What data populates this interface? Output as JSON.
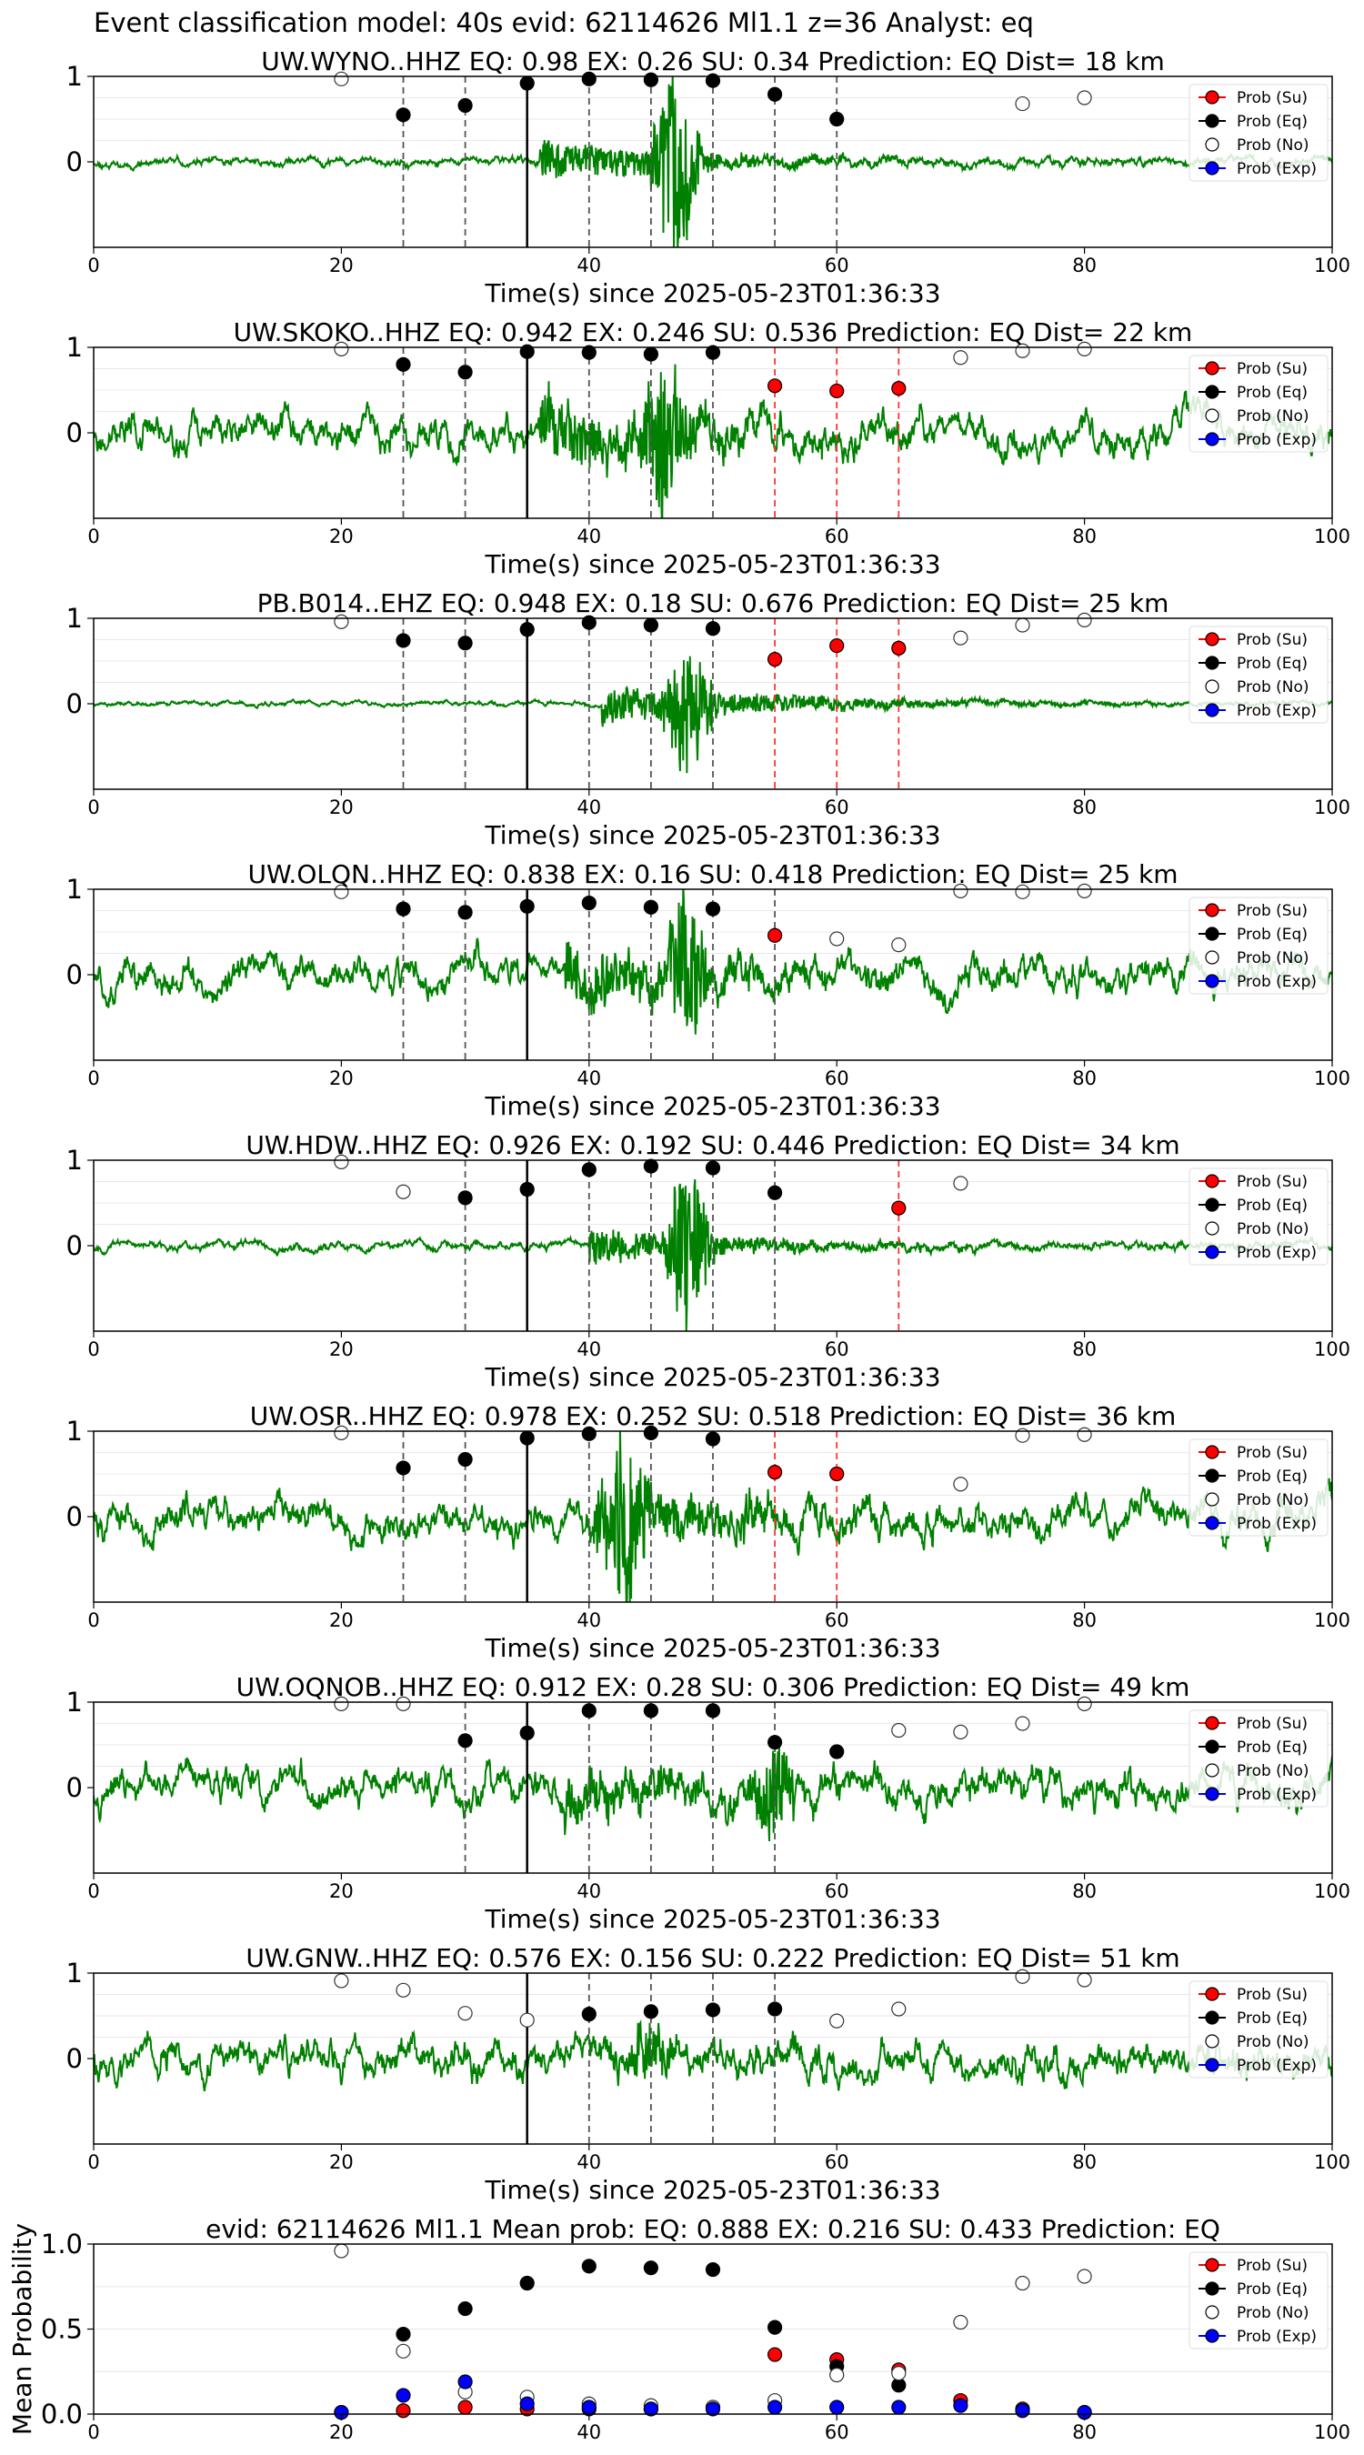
{
  "figure_title": "Event classification model: 40s evid: 62114626 Ml1.1 z=36 Analyst: eq",
  "colors": {
    "waveform": "#008000",
    "prob_su": "#ff0000",
    "prob_eq": "#000000",
    "prob_no": "#ffffff",
    "prob_exp": "#0000ff",
    "line_eq": "#555555",
    "line_su": "#ff3333"
  },
  "legend": [
    "Prob (Su)",
    "Prob (Eq)",
    "Prob (No)",
    "Prob (Exp)"
  ],
  "xlabel": "Time(s) since 2025-05-23T01:36:33",
  "chart_data": [
    {
      "type": "scatter",
      "title": "UW.WYNO..HHZ   EQ: 0.98  EX: 0.26  SU: 0.34   Prediction: EQ    Dist= 18 km",
      "xlabel": "Time(s) since 2025-05-23T01:36:33",
      "xlim": [
        0,
        100
      ],
      "ylim": [
        -1,
        1
      ],
      "xticks": [
        "0",
        "20",
        "40",
        "60",
        "80",
        "100"
      ],
      "yticks": [
        "0",
        "1"
      ],
      "legend": [
        "Prob (Su)",
        "Prob (Eq)",
        "Prob (No)",
        "Prob (Exp)"
      ],
      "legend_position": "top-right",
      "waveform": {
        "noise": 0.07,
        "quake_start": 36,
        "quake_amp": 0.22,
        "burst_center": 47,
        "burst_amp": 1.2,
        "seed": 11
      },
      "eq_lines": [
        25,
        30,
        40,
        45,
        50,
        55,
        60
      ],
      "su_lines": [],
      "origin_line": 35,
      "series": [
        {
          "name": "Prob (Eq)",
          "x": [
            25,
            30,
            35,
            40,
            45,
            50,
            55,
            60
          ],
          "y": [
            0.55,
            0.66,
            0.92,
            0.97,
            0.96,
            0.95,
            0.79,
            0.5
          ]
        },
        {
          "name": "Prob (No)",
          "x": [
            20,
            75,
            80
          ],
          "y": [
            0.97,
            0.68,
            0.75
          ]
        }
      ]
    },
    {
      "type": "scatter",
      "title": "UW.SKOKO..HHZ   EQ: 0.942  EX: 0.246  SU: 0.536   Prediction: EQ    Dist= 22 km",
      "xlabel": "Time(s) since 2025-05-23T01:36:33",
      "xlim": [
        0,
        100
      ],
      "ylim": [
        -1,
        1
      ],
      "xticks": [
        "0",
        "20",
        "40",
        "60",
        "80",
        "100"
      ],
      "yticks": [
        "0",
        "1"
      ],
      "legend": [
        "Prob (Su)",
        "Prob (Eq)",
        "Prob (No)",
        "Prob (Exp)"
      ],
      "legend_position": "top-right",
      "waveform": {
        "noise": 0.3,
        "quake_start": 36,
        "quake_amp": 0.35,
        "burst_center": 46,
        "burst_amp": 0.9,
        "seed": 23
      },
      "eq_lines": [
        25,
        30,
        40,
        45,
        50
      ],
      "su_lines": [
        55,
        60,
        65
      ],
      "origin_line": 35,
      "series": [
        {
          "name": "Prob (Su)",
          "x": [
            55,
            60,
            65
          ],
          "y": [
            0.55,
            0.49,
            0.52
          ]
        },
        {
          "name": "Prob (Eq)",
          "x": [
            25,
            30,
            35,
            40,
            45,
            50
          ],
          "y": [
            0.8,
            0.71,
            0.95,
            0.94,
            0.92,
            0.94
          ]
        },
        {
          "name": "Prob (No)",
          "x": [
            20,
            70,
            75,
            80
          ],
          "y": [
            0.98,
            0.88,
            0.96,
            0.98
          ]
        }
      ]
    },
    {
      "type": "scatter",
      "title": "PB.B014..EHZ   EQ: 0.948  EX: 0.18  SU: 0.676   Prediction: EQ    Dist= 25 km",
      "xlabel": "Time(s) since 2025-05-23T01:36:33",
      "xlim": [
        0,
        100
      ],
      "ylim": [
        -1,
        1
      ],
      "xticks": [
        "0",
        "20",
        "40",
        "60",
        "80",
        "100"
      ],
      "yticks": [
        "0",
        "1"
      ],
      "legend": [
        "Prob (Su)",
        "Prob (Eq)",
        "Prob (No)",
        "Prob (Exp)"
      ],
      "legend_position": "top-right",
      "waveform": {
        "noise": 0.04,
        "quake_start": 41,
        "quake_amp": 0.25,
        "burst_center": 48,
        "burst_amp": 0.8,
        "seed": 37
      },
      "eq_lines": [
        25,
        30,
        40,
        45,
        50
      ],
      "su_lines": [
        55,
        60,
        65
      ],
      "origin_line": 35,
      "series": [
        {
          "name": "Prob (Su)",
          "x": [
            55,
            60,
            65
          ],
          "y": [
            0.52,
            0.68,
            0.65
          ]
        },
        {
          "name": "Prob (Eq)",
          "x": [
            25,
            30,
            35,
            40,
            45,
            50
          ],
          "y": [
            0.74,
            0.71,
            0.87,
            0.95,
            0.92,
            0.88
          ]
        },
        {
          "name": "Prob (No)",
          "x": [
            20,
            70,
            75,
            80
          ],
          "y": [
            0.96,
            0.77,
            0.92,
            0.98
          ]
        }
      ]
    },
    {
      "type": "scatter",
      "title": "UW.OLQN..HHZ   EQ: 0.838  EX: 0.16  SU: 0.418   Prediction: EQ    Dist= 25 km",
      "xlabel": "Time(s) since 2025-05-23T01:36:33",
      "xlim": [
        0,
        100
      ],
      "ylim": [
        -1,
        1
      ],
      "xticks": [
        "0",
        "20",
        "40",
        "60",
        "80",
        "100"
      ],
      "yticks": [
        "0",
        "1"
      ],
      "legend": [
        "Prob (Su)",
        "Prob (Eq)",
        "Prob (No)",
        "Prob (Exp)"
      ],
      "legend_position": "top-right",
      "waveform": {
        "noise": 0.28,
        "quake_start": 38,
        "quake_amp": 0.3,
        "burst_center": 48,
        "burst_amp": 0.8,
        "seed": 51
      },
      "eq_lines": [
        25,
        30,
        40,
        45,
        50,
        55
      ],
      "su_lines": [],
      "origin_line": 35,
      "series": [
        {
          "name": "Prob (Su)",
          "x": [
            55
          ],
          "y": [
            0.46
          ]
        },
        {
          "name": "Prob (Eq)",
          "x": [
            25,
            30,
            35,
            40,
            45,
            50
          ],
          "y": [
            0.77,
            0.73,
            0.8,
            0.84,
            0.79,
            0.77
          ]
        },
        {
          "name": "Prob (No)",
          "x": [
            20,
            60,
            65,
            70,
            75,
            80
          ],
          "y": [
            0.97,
            0.42,
            0.35,
            0.98,
            0.97,
            0.98
          ]
        }
      ]
    },
    {
      "type": "scatter",
      "title": "UW.HDW..HHZ   EQ: 0.926  EX: 0.192  SU: 0.446   Prediction: EQ    Dist= 34 km",
      "xlabel": "Time(s) since 2025-05-23T01:36:33",
      "xlim": [
        0,
        100
      ],
      "ylim": [
        -1,
        1
      ],
      "xticks": [
        "0",
        "20",
        "40",
        "60",
        "80",
        "100"
      ],
      "yticks": [
        "0",
        "1"
      ],
      "legend": [
        "Prob (Su)",
        "Prob (Eq)",
        "Prob (No)",
        "Prob (Exp)"
      ],
      "legend_position": "top-right",
      "waveform": {
        "noise": 0.07,
        "quake_start": 40,
        "quake_amp": 0.2,
        "burst_center": 48,
        "burst_amp": 1.0,
        "seed": 67
      },
      "eq_lines": [
        30,
        40,
        45,
        50,
        55
      ],
      "su_lines": [
        65
      ],
      "origin_line": 35,
      "series": [
        {
          "name": "Prob (Su)",
          "x": [
            65
          ],
          "y": [
            0.44
          ]
        },
        {
          "name": "Prob (Eq)",
          "x": [
            30,
            35,
            40,
            45,
            50,
            55
          ],
          "y": [
            0.56,
            0.66,
            0.89,
            0.93,
            0.91,
            0.62
          ]
        },
        {
          "name": "Prob (No)",
          "x": [
            20,
            25,
            70
          ],
          "y": [
            0.98,
            0.63,
            0.73
          ]
        }
      ]
    },
    {
      "type": "scatter",
      "title": "UW.OSR..HHZ   EQ: 0.978  EX: 0.252  SU: 0.518   Prediction: EQ    Dist= 36 km",
      "xlabel": "Time(s) since 2025-05-23T01:36:33",
      "xlim": [
        0,
        100
      ],
      "ylim": [
        -1,
        1
      ],
      "xticks": [
        "0",
        "20",
        "40",
        "60",
        "80",
        "100"
      ],
      "yticks": [
        "0",
        "1"
      ],
      "legend": [
        "Prob (Su)",
        "Prob (Eq)",
        "Prob (No)",
        "Prob (Exp)"
      ],
      "legend_position": "top-right",
      "waveform": {
        "noise": 0.3,
        "quake_start": 40,
        "quake_amp": 0.35,
        "burst_center": 43,
        "burst_amp": 0.9,
        "seed": 83
      },
      "eq_lines": [
        25,
        30,
        40,
        45,
        50
      ],
      "su_lines": [
        55,
        60
      ],
      "origin_line": 35,
      "series": [
        {
          "name": "Prob (Su)",
          "x": [
            55,
            60
          ],
          "y": [
            0.52,
            0.5
          ]
        },
        {
          "name": "Prob (Eq)",
          "x": [
            25,
            30,
            35,
            40,
            45,
            50
          ],
          "y": [
            0.57,
            0.67,
            0.92,
            0.97,
            0.98,
            0.91
          ]
        },
        {
          "name": "Prob (No)",
          "x": [
            20,
            70,
            75,
            80
          ],
          "y": [
            0.98,
            0.38,
            0.95,
            0.96
          ]
        }
      ]
    },
    {
      "type": "scatter",
      "title": "UW.OQNOB..HHZ   EQ: 0.912  EX: 0.28  SU: 0.306   Prediction: EQ    Dist= 49 km",
      "xlabel": "Time(s) since 2025-05-23T01:36:33",
      "xlim": [
        0,
        100
      ],
      "ylim": [
        -1,
        1
      ],
      "xticks": [
        "0",
        "20",
        "40",
        "60",
        "80",
        "100"
      ],
      "yticks": [
        "0",
        "1"
      ],
      "legend": [
        "Prob (Su)",
        "Prob (Eq)",
        "Prob (No)",
        "Prob (Exp)"
      ],
      "legend_position": "top-right",
      "waveform": {
        "noise": 0.3,
        "quake_start": 38,
        "quake_amp": 0.25,
        "burst_center": 55,
        "burst_amp": 0.5,
        "seed": 97
      },
      "eq_lines": [
        30,
        40,
        45,
        50,
        55
      ],
      "su_lines": [],
      "origin_line": 35,
      "series": [
        {
          "name": "Prob (Eq)",
          "x": [
            30,
            35,
            40,
            45,
            50,
            55,
            60
          ],
          "y": [
            0.55,
            0.64,
            0.9,
            0.9,
            0.9,
            0.53,
            0.42
          ]
        },
        {
          "name": "Prob (No)",
          "x": [
            20,
            25,
            65,
            70,
            75,
            80
          ],
          "y": [
            0.98,
            0.98,
            0.67,
            0.65,
            0.75,
            0.98
          ]
        }
      ]
    },
    {
      "type": "scatter",
      "title": "UW.GNW..HHZ   EQ: 0.576  EX: 0.156  SU: 0.222   Prediction: EQ    Dist= 51 km",
      "xlabel": "Time(s) since 2025-05-23T01:36:33",
      "xlim": [
        0,
        100
      ],
      "ylim": [
        -1,
        1
      ],
      "xticks": [
        "0",
        "20",
        "40",
        "60",
        "80",
        "100"
      ],
      "yticks": [
        "0",
        "1"
      ],
      "legend": [
        "Prob (Su)",
        "Prob (Eq)",
        "Prob (No)",
        "Prob (Exp)"
      ],
      "legend_position": "top-right",
      "waveform": {
        "noise": 0.3,
        "quake_start": 40,
        "quake_amp": 0.1,
        "burst_center": 45,
        "burst_amp": 0.3,
        "seed": 113
      },
      "eq_lines": [
        40,
        45,
        50,
        55
      ],
      "su_lines": [],
      "origin_line": 35,
      "series": [
        {
          "name": "Prob (Eq)",
          "x": [
            40,
            45,
            50,
            55
          ],
          "y": [
            0.52,
            0.55,
            0.57,
            0.58
          ]
        },
        {
          "name": "Prob (No)",
          "x": [
            20,
            25,
            30,
            35,
            60,
            65,
            75,
            80
          ],
          "y": [
            0.91,
            0.8,
            0.53,
            0.45,
            0.44,
            0.58,
            0.96,
            0.92
          ]
        }
      ]
    },
    {
      "type": "scatter",
      "title": "evid: 62114626  Ml1.1   Mean prob:   EQ: 0.888  EX: 0.216  SU: 0.433   Prediction: EQ",
      "xlabel": "",
      "ylabel": "Mean Probability",
      "xlim": [
        0,
        100
      ],
      "ylim": [
        0,
        1
      ],
      "xticks": [
        "0",
        "20",
        "40",
        "60",
        "80",
        "100"
      ],
      "yticks": [
        "0.0",
        "0.5",
        "1.0"
      ],
      "legend": [
        "Prob (Su)",
        "Prob (Eq)",
        "Prob (No)",
        "Prob (Exp)"
      ],
      "legend_position": "top-right",
      "series": [
        {
          "name": "Prob (Su)",
          "x": [
            20,
            25,
            30,
            35,
            40,
            45,
            50,
            55,
            60,
            65,
            70,
            75,
            80
          ],
          "y": [
            0.01,
            0.02,
            0.04,
            0.03,
            0.03,
            0.03,
            0.04,
            0.35,
            0.32,
            0.26,
            0.08,
            0.03,
            0.01
          ]
        },
        {
          "name": "Prob (Eq)",
          "x": [
            25,
            30,
            35,
            40,
            45,
            50,
            55,
            60,
            65
          ],
          "y": [
            0.47,
            0.62,
            0.77,
            0.87,
            0.86,
            0.85,
            0.51,
            0.28,
            0.17
          ]
        },
        {
          "name": "Prob (No)",
          "x": [
            20,
            25,
            30,
            35,
            40,
            45,
            50,
            55,
            60,
            65,
            70,
            75,
            80
          ],
          "y": [
            0.96,
            0.37,
            0.13,
            0.1,
            0.06,
            0.05,
            0.04,
            0.08,
            0.23,
            0.24,
            0.54,
            0.77,
            0.81
          ]
        },
        {
          "name": "Prob (Exp)",
          "x": [
            20,
            25,
            30,
            35,
            40,
            45,
            50,
            55,
            60,
            65,
            70,
            75,
            80
          ],
          "y": [
            0.01,
            0.11,
            0.19,
            0.06,
            0.04,
            0.03,
            0.03,
            0.04,
            0.04,
            0.04,
            0.05,
            0.02,
            0.01
          ]
        }
      ]
    }
  ]
}
